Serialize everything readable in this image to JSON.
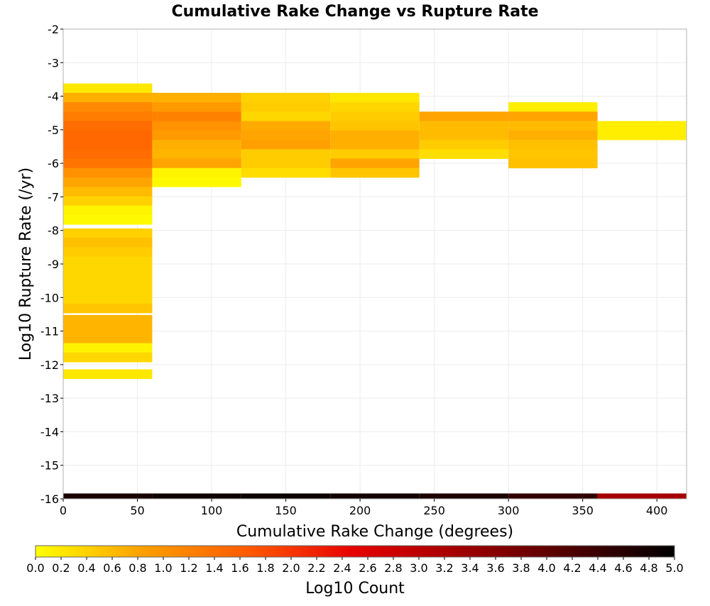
{
  "chart_data": {
    "type": "heatmap",
    "title": "Cumulative Rake Change vs Rupture Rate",
    "xlabel": "Cumulative Rake Change (degrees)",
    "ylabel": "Log10 Rupture Rate (/yr)",
    "xlim": [
      0,
      420
    ],
    "ylim": [
      -16,
      -2
    ],
    "grid": true,
    "x_ticks": [
      "0",
      "50",
      "100",
      "150",
      "200",
      "250",
      "300",
      "350",
      "400"
    ],
    "y_ticks": [
      "-2",
      "-3",
      "-4",
      "-5",
      "-6",
      "-7",
      "-8",
      "-9",
      "-10",
      "-11",
      "-12",
      "-13",
      "-14",
      "-15",
      "-16"
    ],
    "x_bin_width": 60,
    "y_bin_height": 0.28,
    "colorbar": {
      "label": "Log10 Count",
      "range": [
        0,
        5
      ],
      "ticks": [
        "0.0",
        "0.2",
        "0.4",
        "0.6",
        "0.8",
        "1.0",
        "1.2",
        "1.4",
        "1.6",
        "1.8",
        "2.0",
        "2.2",
        "2.4",
        "2.6",
        "2.8",
        "3.0",
        "3.2",
        "3.4",
        "3.6",
        "3.8",
        "4.0",
        "4.2",
        "4.4",
        "4.6",
        "4.8",
        "5.0"
      ],
      "palette": [
        "#ffff00",
        "#ffa000",
        "#ff5a00",
        "#e60000",
        "#a00000",
        "#500000",
        "#000000"
      ]
    },
    "columns": [
      {
        "x_start": 0,
        "cells": [
          [
            -3.62,
            0.2
          ],
          [
            -3.9,
            0.7
          ],
          [
            -4.18,
            1.1
          ],
          [
            -4.46,
            1.25
          ],
          [
            -4.74,
            1.45
          ],
          [
            -5.02,
            1.5
          ],
          [
            -5.3,
            1.5
          ],
          [
            -5.58,
            1.45
          ],
          [
            -5.86,
            1.35
          ],
          [
            -6.14,
            1.0
          ],
          [
            -6.42,
            0.8
          ],
          [
            -6.7,
            0.6
          ],
          [
            -6.98,
            0.4
          ],
          [
            -7.26,
            0.1
          ],
          [
            -7.54,
            0.05
          ],
          [
            -7.94,
            0.4
          ],
          [
            -8.22,
            0.55
          ],
          [
            -8.5,
            0.45
          ],
          [
            -8.78,
            0.35
          ],
          [
            -9.06,
            0.35
          ],
          [
            -9.34,
            0.35
          ],
          [
            -9.62,
            0.35
          ],
          [
            -9.9,
            0.35
          ],
          [
            -10.18,
            0.5
          ],
          [
            -10.52,
            0.65
          ],
          [
            -10.8,
            0.65
          ],
          [
            -11.08,
            0.65
          ],
          [
            -11.36,
            0.1
          ],
          [
            -11.64,
            0.35
          ],
          [
            -12.14,
            0.2
          ]
        ],
        "bottom": 0.05
      },
      {
        "x_start": 60,
        "cells": [
          [
            -3.9,
            0.7
          ],
          [
            -4.18,
            0.9
          ],
          [
            -4.46,
            1.2
          ],
          [
            -4.74,
            1.0
          ],
          [
            -5.02,
            0.9
          ],
          [
            -5.3,
            0.7
          ],
          [
            -5.58,
            0.65
          ],
          [
            -5.86,
            0.8
          ],
          [
            -6.14,
            0.1
          ],
          [
            -6.42,
            0.05
          ]
        ],
        "bottom": 0.03
      },
      {
        "x_start": 120,
        "cells": [
          [
            -3.9,
            0.4
          ],
          [
            -4.18,
            0.45
          ],
          [
            -4.46,
            0.35
          ],
          [
            -4.74,
            0.75
          ],
          [
            -5.02,
            0.8
          ],
          [
            -5.3,
            0.85
          ],
          [
            -5.58,
            0.45
          ],
          [
            -5.86,
            0.45
          ],
          [
            -6.14,
            0.3
          ]
        ],
        "bottom": 0.02
      },
      {
        "x_start": 180,
        "cells": [
          [
            -3.9,
            0.2
          ],
          [
            -4.18,
            0.35
          ],
          [
            -4.46,
            0.45
          ],
          [
            -4.74,
            0.5
          ],
          [
            -5.02,
            0.7
          ],
          [
            -5.3,
            0.7
          ],
          [
            -5.58,
            0.45
          ],
          [
            -5.86,
            0.8
          ],
          [
            -6.14,
            0.5
          ]
        ],
        "bottom": 0.04
      },
      {
        "x_start": 240,
        "cells": [
          [
            -4.46,
            0.8
          ],
          [
            -4.74,
            0.6
          ],
          [
            -5.02,
            0.6
          ],
          [
            -5.3,
            0.45
          ],
          [
            -5.58,
            0.3
          ]
        ],
        "bottom": 0.06
      },
      {
        "x_start": 300,
        "cells": [
          [
            -4.18,
            0.15
          ],
          [
            -4.46,
            0.8
          ],
          [
            -4.74,
            0.6
          ],
          [
            -5.02,
            0.7
          ],
          [
            -5.3,
            0.55
          ],
          [
            -5.58,
            0.5
          ],
          [
            -5.86,
            0.55
          ]
        ],
        "bottom": 0.1
      },
      {
        "x_start": 360,
        "cells": [
          [
            -4.74,
            0.15
          ],
          [
            -5.02,
            0.15
          ]
        ],
        "bottom": 0.35
      }
    ]
  }
}
